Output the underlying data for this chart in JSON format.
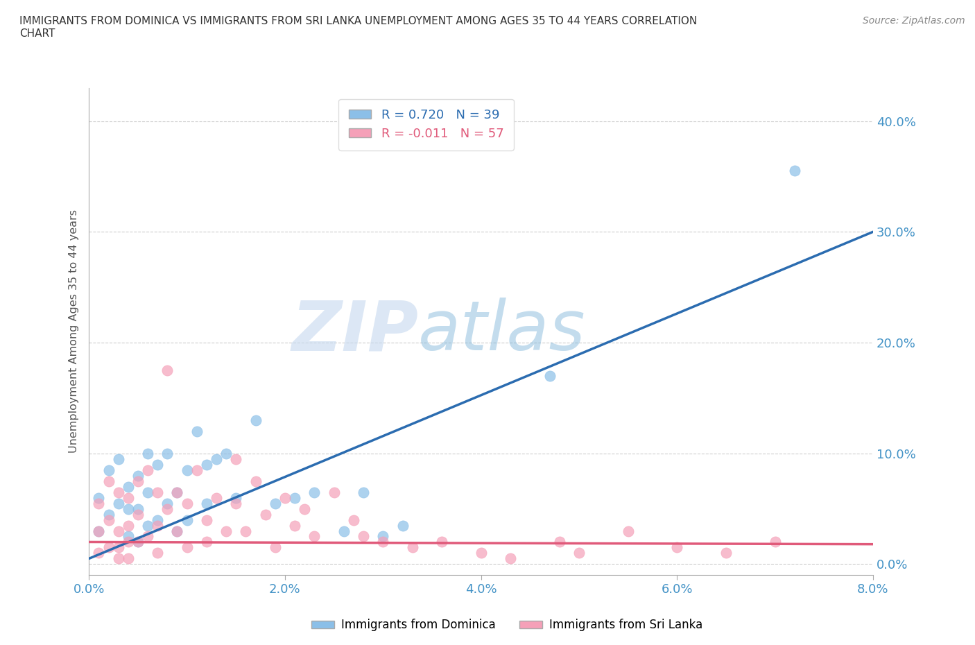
{
  "title": "IMMIGRANTS FROM DOMINICA VS IMMIGRANTS FROM SRI LANKA UNEMPLOYMENT AMONG AGES 35 TO 44 YEARS CORRELATION\nCHART",
  "source": "Source: ZipAtlas.com",
  "ylabel": "Unemployment Among Ages 35 to 44 years",
  "xlim": [
    0.0,
    0.08
  ],
  "ylim": [
    -0.01,
    0.43
  ],
  "xticks": [
    0.0,
    0.02,
    0.04,
    0.06,
    0.08
  ],
  "yticks": [
    0.0,
    0.1,
    0.2,
    0.3,
    0.4
  ],
  "dominica_color": "#8bbfe8",
  "srilanka_color": "#f5a0b8",
  "dominica_line_color": "#2b6cb0",
  "srilanka_line_color": "#e05a7a",
  "R_dominica": 0.72,
  "N_dominica": 39,
  "R_srilanka": -0.011,
  "N_srilanka": 57,
  "watermark_zip": "ZIP",
  "watermark_atlas": "atlas",
  "background_color": "#ffffff",
  "dominica_line_x0": 0.0,
  "dominica_line_y0": 0.005,
  "dominica_line_x1": 0.08,
  "dominica_line_y1": 0.3,
  "srilanka_line_x0": 0.0,
  "srilanka_line_y0": 0.02,
  "srilanka_line_x1": 0.08,
  "srilanka_line_y1": 0.018,
  "dominica_x": [
    0.001,
    0.001,
    0.002,
    0.002,
    0.003,
    0.003,
    0.004,
    0.004,
    0.004,
    0.005,
    0.005,
    0.005,
    0.006,
    0.006,
    0.006,
    0.007,
    0.007,
    0.008,
    0.008,
    0.009,
    0.009,
    0.01,
    0.01,
    0.011,
    0.012,
    0.012,
    0.013,
    0.014,
    0.015,
    0.017,
    0.019,
    0.021,
    0.023,
    0.026,
    0.028,
    0.03,
    0.032,
    0.047,
    0.072
  ],
  "dominica_y": [
    0.06,
    0.03,
    0.085,
    0.045,
    0.095,
    0.055,
    0.07,
    0.05,
    0.025,
    0.08,
    0.05,
    0.02,
    0.1,
    0.065,
    0.035,
    0.09,
    0.04,
    0.1,
    0.055,
    0.065,
    0.03,
    0.085,
    0.04,
    0.12,
    0.09,
    0.055,
    0.095,
    0.1,
    0.06,
    0.13,
    0.055,
    0.06,
    0.065,
    0.03,
    0.065,
    0.025,
    0.035,
    0.17,
    0.355
  ],
  "srilanka_x": [
    0.001,
    0.001,
    0.001,
    0.002,
    0.002,
    0.002,
    0.003,
    0.003,
    0.003,
    0.003,
    0.004,
    0.004,
    0.004,
    0.004,
    0.005,
    0.005,
    0.005,
    0.006,
    0.006,
    0.007,
    0.007,
    0.007,
    0.008,
    0.008,
    0.009,
    0.009,
    0.01,
    0.01,
    0.011,
    0.012,
    0.012,
    0.013,
    0.014,
    0.015,
    0.015,
    0.016,
    0.017,
    0.018,
    0.019,
    0.02,
    0.021,
    0.022,
    0.023,
    0.025,
    0.027,
    0.028,
    0.03,
    0.033,
    0.036,
    0.04,
    0.043,
    0.048,
    0.05,
    0.055,
    0.06,
    0.065,
    0.07
  ],
  "srilanka_y": [
    0.055,
    0.03,
    0.01,
    0.075,
    0.04,
    0.015,
    0.065,
    0.03,
    0.015,
    0.005,
    0.06,
    0.035,
    0.02,
    0.005,
    0.075,
    0.045,
    0.02,
    0.085,
    0.025,
    0.065,
    0.035,
    0.01,
    0.175,
    0.05,
    0.065,
    0.03,
    0.055,
    0.015,
    0.085,
    0.04,
    0.02,
    0.06,
    0.03,
    0.095,
    0.055,
    0.03,
    0.075,
    0.045,
    0.015,
    0.06,
    0.035,
    0.05,
    0.025,
    0.065,
    0.04,
    0.025,
    0.02,
    0.015,
    0.02,
    0.01,
    0.005,
    0.02,
    0.01,
    0.03,
    0.015,
    0.01,
    0.02
  ]
}
